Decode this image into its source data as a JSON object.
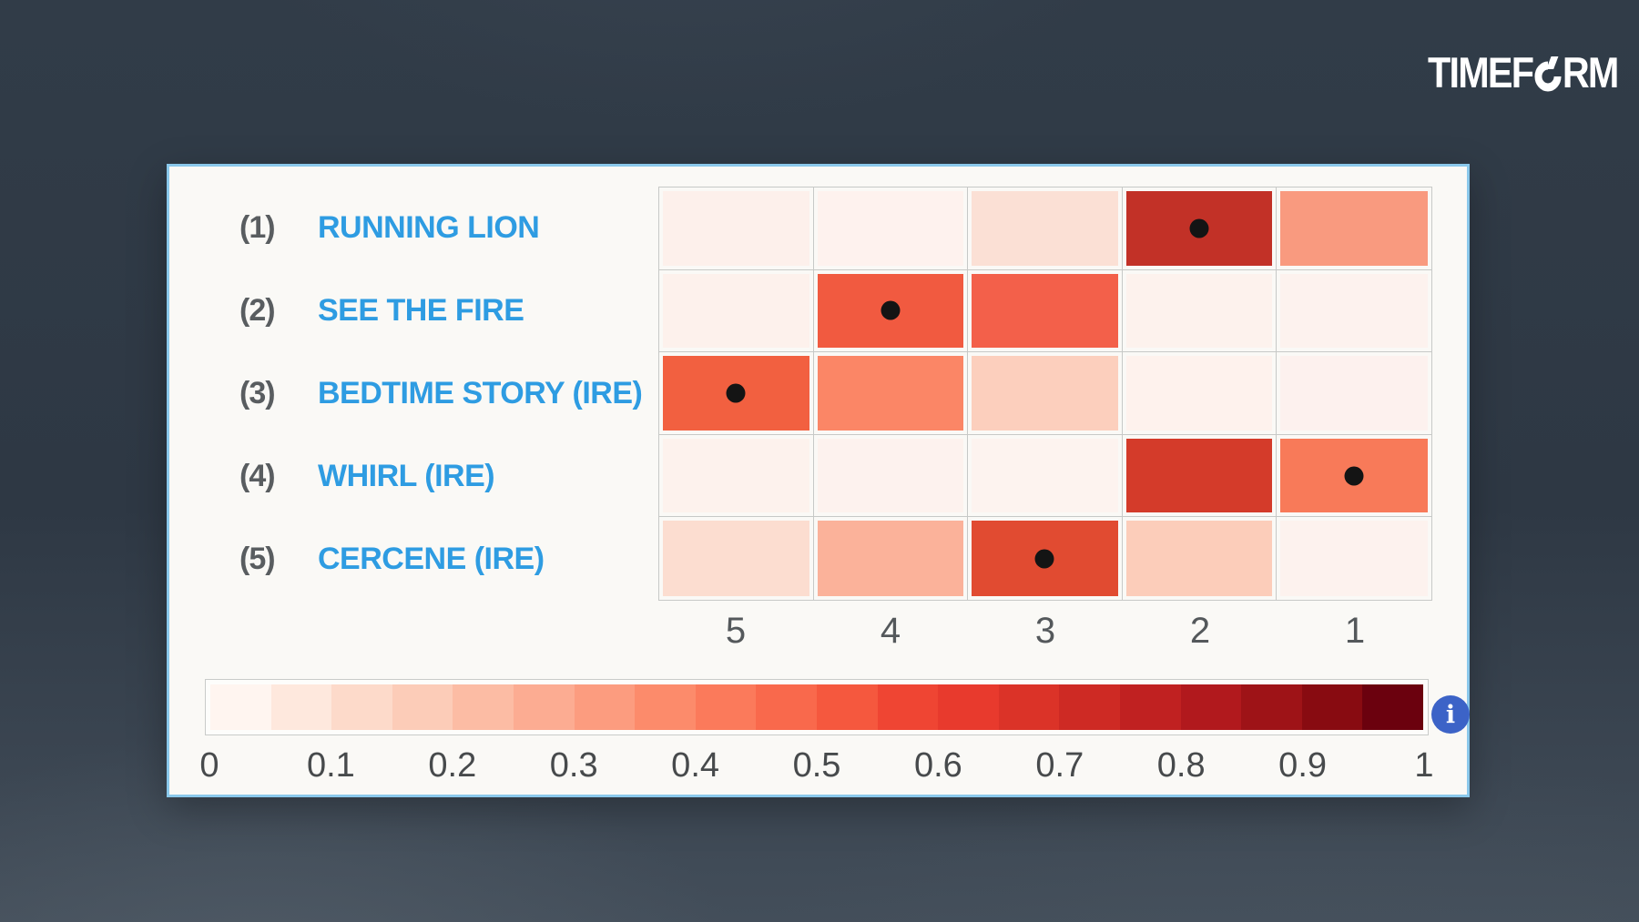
{
  "logo": {
    "text": "TIMEFORM",
    "left": "TIMEF",
    "right": "RM",
    "color": "#FFFFFF"
  },
  "panel": {
    "background": "#FAF9F6",
    "border_color": "#8AC8EB"
  },
  "horses": [
    {
      "number": "(1)",
      "name": "RUNNING LION"
    },
    {
      "number": "(2)",
      "name": "SEE THE FIRE"
    },
    {
      "number": "(3)",
      "name": "BEDTIME STORY (IRE)"
    },
    {
      "number": "(4)",
      "name": "WHIRL (IRE)"
    },
    {
      "number": "(5)",
      "name": "CERCENE (IRE)"
    }
  ],
  "heatmap": {
    "columns": [
      "5",
      "4",
      "3",
      "2",
      "1"
    ],
    "grid_line_color": "#C7C9C7",
    "dot_color": "#141414",
    "rows": [
      {
        "cells": [
          {
            "color": "#FDF0EB",
            "dot": false
          },
          {
            "color": "#FEF2EE",
            "dot": false
          },
          {
            "color": "#FBE0D5",
            "dot": false
          },
          {
            "color": "#C23127",
            "dot": true
          },
          {
            "color": "#F99A7F",
            "dot": false
          }
        ]
      },
      {
        "cells": [
          {
            "color": "#FDF1EC",
            "dot": false
          },
          {
            "color": "#F15A40",
            "dot": true
          },
          {
            "color": "#F3604A",
            "dot": false
          },
          {
            "color": "#FDF2ED",
            "dot": false
          },
          {
            "color": "#FDF2EE",
            "dot": false
          }
        ]
      },
      {
        "cells": [
          {
            "color": "#F26040",
            "dot": true
          },
          {
            "color": "#FB8666",
            "dot": false
          },
          {
            "color": "#FCCFBD",
            "dot": false
          },
          {
            "color": "#FEF2ED",
            "dot": false
          },
          {
            "color": "#FDF1EE",
            "dot": false
          }
        ]
      },
      {
        "cells": [
          {
            "color": "#FDF2ED",
            "dot": false
          },
          {
            "color": "#FDF2EE",
            "dot": false
          },
          {
            "color": "#FDF3EF",
            "dot": false
          },
          {
            "color": "#D43B2A",
            "dot": false
          },
          {
            "color": "#F87A59",
            "dot": true
          }
        ]
      },
      {
        "cells": [
          {
            "color": "#FCDDD0",
            "dot": false
          },
          {
            "color": "#FBB29A",
            "dot": false
          },
          {
            "color": "#E14B31",
            "dot": true
          },
          {
            "color": "#FCCDBA",
            "dot": false
          },
          {
            "color": "#FDF2EE",
            "dot": false
          }
        ]
      }
    ]
  },
  "colorbar": {
    "steps": [
      "#FFF5F0",
      "#FEE8DD",
      "#FDDACA",
      "#FCCCB8",
      "#FCBCA4",
      "#FCAC92",
      "#FC9C7F",
      "#FC8B6B",
      "#FB7A5B",
      "#F9694C",
      "#F5583E",
      "#EF4533",
      "#E83A2D",
      "#DB3328",
      "#CE2A24",
      "#C02121",
      "#B1191D",
      "#9E1317",
      "#880B11",
      "#6B010E"
    ],
    "ticks": [
      "0",
      "0.1",
      "0.2",
      "0.3",
      "0.4",
      "0.5",
      "0.6",
      "0.7",
      "0.8",
      "0.9",
      "1"
    ],
    "border_color": "#C9CBC9"
  },
  "info_button": {
    "label": "i",
    "color": "#3C63C7"
  },
  "chart_data": {
    "type": "heatmap",
    "rows": [
      "RUNNING LION",
      "SEE THE FIRE",
      "BEDTIME STORY (IRE)",
      "WHIRL (IRE)",
      "CERCENE (IRE)"
    ],
    "row_numbers": [
      "(1)",
      "(2)",
      "(3)",
      "(4)",
      "(5)"
    ],
    "columns": [
      "5",
      "4",
      "3",
      "2",
      "1"
    ],
    "values": [
      [
        0.02,
        0.02,
        0.08,
        0.6,
        0.28
      ],
      [
        0.03,
        0.47,
        0.44,
        0.03,
        0.03
      ],
      [
        0.48,
        0.33,
        0.14,
        0.03,
        0.02
      ],
      [
        0.02,
        0.02,
        0.03,
        0.58,
        0.35
      ],
      [
        0.1,
        0.22,
        0.52,
        0.13,
        0.03
      ]
    ],
    "dot_position": {
      "RUNNING LION": "2",
      "SEE THE FIRE": "4",
      "BEDTIME STORY (IRE)": "5",
      "WHIRL (IRE)": "1",
      "CERCENE (IRE)": "3"
    },
    "colormap": "Reds",
    "scale": [
      0,
      1
    ],
    "colorbar_ticks": [
      0,
      0.1,
      0.2,
      0.3,
      0.4,
      0.5,
      0.6,
      0.7,
      0.8,
      0.9,
      1
    ],
    "legend_position": "bottom",
    "grid": true
  }
}
